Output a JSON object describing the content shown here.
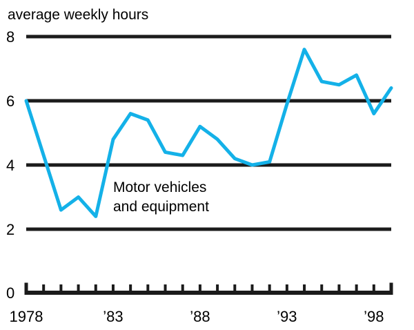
{
  "page": {
    "background": "#ffffff"
  },
  "annotation": {
    "line1": "Motor vehicles",
    "line2": "and equipment"
  },
  "chart_data": {
    "type": "line",
    "title": "average weekly hours",
    "xlabel": "",
    "ylabel": "average weekly hours",
    "xlim": [
      1978,
      1999
    ],
    "ylim": [
      0,
      8
    ],
    "yticks": [
      0,
      2,
      4,
      6,
      8
    ],
    "grid": "horizontal-only",
    "legend_position": "none",
    "xtick_labels": [
      {
        "year": 1978,
        "label": "1978"
      },
      {
        "year": 1983,
        "label": "’83"
      },
      {
        "year": 1988,
        "label": "’88"
      },
      {
        "year": 1993,
        "label": "’93"
      },
      {
        "year": 1998,
        "label": "’98"
      }
    ],
    "minor_xticks_every_year": true,
    "series": [
      {
        "name": "Motor vehicles and equipment",
        "color": "#14b1e8",
        "x": [
          1978,
          1979,
          1980,
          1981,
          1982,
          1983,
          1984,
          1985,
          1986,
          1987,
          1988,
          1989,
          1990,
          1991,
          1992,
          1993,
          1994,
          1995,
          1996,
          1997,
          1998,
          1999
        ],
        "values": [
          6.0,
          4.3,
          2.6,
          3.0,
          2.4,
          4.8,
          5.6,
          5.4,
          4.4,
          4.3,
          5.2,
          4.8,
          4.2,
          4.0,
          4.1,
          5.9,
          7.6,
          6.6,
          6.5,
          6.8,
          5.6,
          6.4
        ]
      }
    ],
    "colors": {
      "line": "#14b1e8",
      "grid": "#1b1b1b",
      "axis": "#1b1b1b",
      "text": "#000000"
    }
  }
}
